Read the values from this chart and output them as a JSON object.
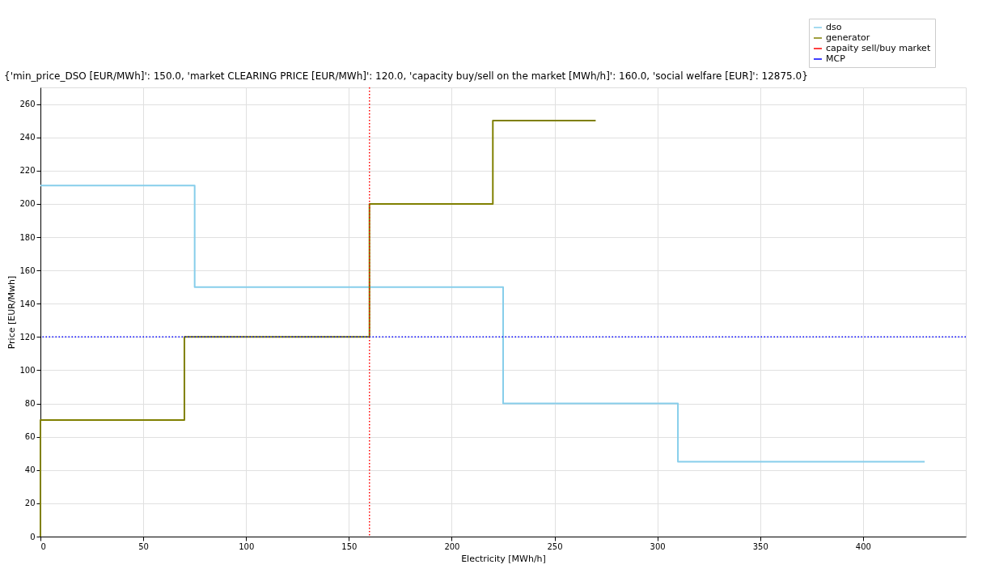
{
  "chart_data": {
    "type": "step",
    "annotations": [
      "{'min_price_DSO [EUR/MWh]': 150.0, 'market CLEARING PRICE [EUR/MWh]': 120.0, 'capacity buy/sell on the market [MWh/h]': 160.0, 'social welfare [EUR]': 12875.0}"
    ],
    "xlabel": "Electricity [MWh/h]",
    "ylabel": "Price [EUR/Mwh]",
    "series": [
      {
        "name": "dso",
        "color": "#87ceeb",
        "x": [
          0,
          75,
          225,
          310,
          430
        ],
        "values": [
          211,
          150,
          80,
          45,
          45
        ]
      },
      {
        "name": "generator",
        "color": "#808000",
        "x": [
          0,
          0,
          70,
          160,
          220,
          270
        ],
        "values": [
          0,
          70,
          120,
          200,
          250,
          250
        ]
      }
    ],
    "ref_lines": [
      {
        "axis": "x",
        "value": 160,
        "label": "capaity sell/buy market",
        "color": "#ff0000",
        "line_style": "dotted"
      },
      {
        "axis": "y",
        "value": 120,
        "label": "MCP",
        "color": "#0000ff",
        "line_style": "dotted"
      }
    ],
    "xlim": [
      0,
      450
    ],
    "xticks": [
      0,
      50,
      100,
      150,
      200,
      250,
      300,
      350,
      400
    ],
    "ylim": [
      0,
      270
    ],
    "yticks": [
      0,
      20,
      40,
      60,
      80,
      100,
      120,
      140,
      160,
      180,
      200,
      220,
      240,
      260
    ],
    "grid": true,
    "legend": "top right",
    "line_style": "solid",
    "marker": "none"
  }
}
